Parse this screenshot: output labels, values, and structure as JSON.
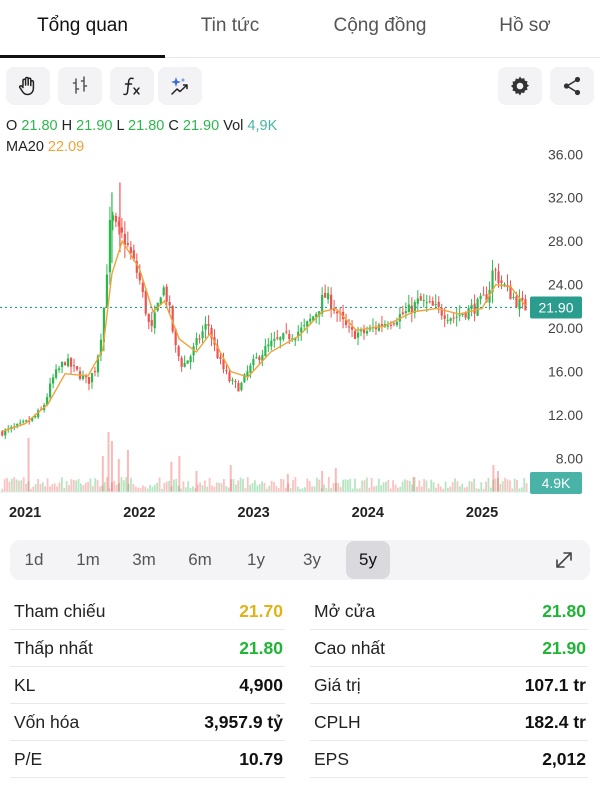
{
  "tabs": [
    {
      "label": "Tổng quan",
      "active": true
    },
    {
      "label": "Tin tức",
      "active": false
    },
    {
      "label": "Cộng đồng",
      "active": false
    },
    {
      "label": "Hồ sơ",
      "active": false
    }
  ],
  "toolbar": {
    "left_icons": [
      "hand-icon",
      "candle-type-icon",
      "function-icon",
      "ai-sparkle-icon"
    ],
    "right_icons": [
      "gear-icon",
      "share-icon"
    ]
  },
  "ohlc": {
    "o_label": "O",
    "o_value": "21.80",
    "h_label": "H",
    "h_value": "21.90",
    "l_label": "L",
    "l_value": "21.80",
    "c_label": "C",
    "c_value": "21.90",
    "vol_label": "Vol",
    "vol_value": "4,9K",
    "ma_label": "MA20",
    "ma_value": "22.09"
  },
  "colors": {
    "up": "#2db84d",
    "down": "#ef5350",
    "ma": "#f0a33a",
    "price_line": "#2a9d8f",
    "vol_badge": "#49b3a8"
  },
  "chart_data": {
    "type": "candlestick",
    "x_ticks": [
      "2021",
      "2022",
      "2023",
      "2024",
      "2025"
    ],
    "y_ticks": [
      "36.00",
      "32.00",
      "28.00",
      "24.00",
      "20.00",
      "16.00",
      "12.00",
      "8.00"
    ],
    "ylim": [
      6.2,
      37.5
    ],
    "last_price": "21.90",
    "last_volume": "4.9K",
    "close_series": [
      {
        "t": 2020.8,
        "v": 10.4
      },
      {
        "t": 2020.95,
        "v": 11.0
      },
      {
        "t": 2021.05,
        "v": 11.5
      },
      {
        "t": 2021.15,
        "v": 12.5
      },
      {
        "t": 2021.25,
        "v": 15.5
      },
      {
        "t": 2021.35,
        "v": 17.0
      },
      {
        "t": 2021.45,
        "v": 16.0
      },
      {
        "t": 2021.55,
        "v": 15.0
      },
      {
        "t": 2021.62,
        "v": 16.5
      },
      {
        "t": 2021.68,
        "v": 20.5
      },
      {
        "t": 2021.72,
        "v": 26.0
      },
      {
        "t": 2021.75,
        "v": 30.5
      },
      {
        "t": 2021.8,
        "v": 29.0
      },
      {
        "t": 2021.88,
        "v": 28.0
      },
      {
        "t": 2021.95,
        "v": 26.0
      },
      {
        "t": 2022.0,
        "v": 24.5
      },
      {
        "t": 2022.05,
        "v": 22.0
      },
      {
        "t": 2022.1,
        "v": 19.5
      },
      {
        "t": 2022.15,
        "v": 21.5
      },
      {
        "t": 2022.2,
        "v": 24.0
      },
      {
        "t": 2022.25,
        "v": 22.5
      },
      {
        "t": 2022.32,
        "v": 18.0
      },
      {
        "t": 2022.38,
        "v": 16.5
      },
      {
        "t": 2022.45,
        "v": 17.5
      },
      {
        "t": 2022.52,
        "v": 19.0
      },
      {
        "t": 2022.6,
        "v": 20.5
      },
      {
        "t": 2022.65,
        "v": 18.5
      },
      {
        "t": 2022.72,
        "v": 16.5
      },
      {
        "t": 2022.8,
        "v": 15.0
      },
      {
        "t": 2022.88,
        "v": 14.5
      },
      {
        "t": 2022.95,
        "v": 16.0
      },
      {
        "t": 2023.05,
        "v": 17.5
      },
      {
        "t": 2023.15,
        "v": 18.5
      },
      {
        "t": 2023.25,
        "v": 19.0
      },
      {
        "t": 2023.35,
        "v": 19.5
      },
      {
        "t": 2023.45,
        "v": 20.0
      },
      {
        "t": 2023.55,
        "v": 21.5
      },
      {
        "t": 2023.62,
        "v": 23.0
      },
      {
        "t": 2023.7,
        "v": 22.0
      },
      {
        "t": 2023.78,
        "v": 20.5
      },
      {
        "t": 2023.85,
        "v": 19.5
      },
      {
        "t": 2023.95,
        "v": 19.5
      },
      {
        "t": 2024.05,
        "v": 20.0
      },
      {
        "t": 2024.15,
        "v": 20.5
      },
      {
        "t": 2024.25,
        "v": 21.0
      },
      {
        "t": 2024.35,
        "v": 21.5
      },
      {
        "t": 2024.45,
        "v": 22.5
      },
      {
        "t": 2024.55,
        "v": 22.0
      },
      {
        "t": 2024.65,
        "v": 21.5
      },
      {
        "t": 2024.75,
        "v": 21.0
      },
      {
        "t": 2024.85,
        "v": 21.5
      },
      {
        "t": 2024.95,
        "v": 22.0
      },
      {
        "t": 2025.05,
        "v": 23.0
      },
      {
        "t": 2025.1,
        "v": 25.5
      },
      {
        "t": 2025.15,
        "v": 24.5
      },
      {
        "t": 2025.22,
        "v": 23.5
      },
      {
        "t": 2025.3,
        "v": 22.5
      },
      {
        "t": 2025.38,
        "v": 21.9
      }
    ],
    "ma_series": [
      {
        "t": 2020.8,
        "v": 10.5
      },
      {
        "t": 2021.0,
        "v": 11.2
      },
      {
        "t": 2021.2,
        "v": 13.0
      },
      {
        "t": 2021.35,
        "v": 15.8
      },
      {
        "t": 2021.55,
        "v": 15.6
      },
      {
        "t": 2021.68,
        "v": 18.0
      },
      {
        "t": 2021.76,
        "v": 25.0
      },
      {
        "t": 2021.85,
        "v": 28.0
      },
      {
        "t": 2022.0,
        "v": 25.5
      },
      {
        "t": 2022.12,
        "v": 21.5
      },
      {
        "t": 2022.22,
        "v": 22.5
      },
      {
        "t": 2022.35,
        "v": 19.0
      },
      {
        "t": 2022.5,
        "v": 17.8
      },
      {
        "t": 2022.62,
        "v": 19.5
      },
      {
        "t": 2022.8,
        "v": 16.0
      },
      {
        "t": 2022.95,
        "v": 15.5
      },
      {
        "t": 2023.15,
        "v": 17.8
      },
      {
        "t": 2023.4,
        "v": 19.3
      },
      {
        "t": 2023.6,
        "v": 21.5
      },
      {
        "t": 2023.72,
        "v": 21.8
      },
      {
        "t": 2023.9,
        "v": 19.8
      },
      {
        "t": 2024.15,
        "v": 20.2
      },
      {
        "t": 2024.4,
        "v": 21.5
      },
      {
        "t": 2024.6,
        "v": 21.8
      },
      {
        "t": 2024.8,
        "v": 21.3
      },
      {
        "t": 2025.0,
        "v": 21.8
      },
      {
        "t": 2025.12,
        "v": 24.0
      },
      {
        "t": 2025.25,
        "v": 23.8
      },
      {
        "t": 2025.38,
        "v": 22.09
      }
    ],
    "volume_spikes": [
      {
        "t": 2021.03,
        "v": 0.9
      },
      {
        "t": 2021.68,
        "v": 0.6
      },
      {
        "t": 2021.73,
        "v": 1.0
      },
      {
        "t": 2021.76,
        "v": 0.85
      },
      {
        "t": 2021.82,
        "v": 0.55
      },
      {
        "t": 2021.9,
        "v": 0.7
      },
      {
        "t": 2022.28,
        "v": 0.5
      },
      {
        "t": 2022.35,
        "v": 0.6
      },
      {
        "t": 2022.5,
        "v": 0.35
      },
      {
        "t": 2022.8,
        "v": 0.45
      },
      {
        "t": 2023.3,
        "v": 0.3
      },
      {
        "t": 2023.6,
        "v": 0.35
      },
      {
        "t": 2023.72,
        "v": 0.4
      },
      {
        "t": 2024.4,
        "v": 0.25
      },
      {
        "t": 2025.1,
        "v": 0.45
      },
      {
        "t": 2025.14,
        "v": 0.35
      }
    ]
  },
  "periods": [
    {
      "label": "1d",
      "active": false
    },
    {
      "label": "1m",
      "active": false
    },
    {
      "label": "3m",
      "active": false
    },
    {
      "label": "6m",
      "active": false
    },
    {
      "label": "1y",
      "active": false
    },
    {
      "label": "3y",
      "active": false
    },
    {
      "label": "5y",
      "active": true
    }
  ],
  "stats": {
    "left": [
      {
        "label": "Tham chiếu",
        "value": "21.70",
        "color": "yellow"
      },
      {
        "label": "Thấp nhất",
        "value": "21.80",
        "color": "green"
      },
      {
        "label": "KL",
        "value": "4,900",
        "color": "default"
      },
      {
        "label": "Vốn hóa",
        "value": "3,957.9 tỷ",
        "color": "default"
      },
      {
        "label": "P/E",
        "value": "10.79",
        "color": "default"
      }
    ],
    "right": [
      {
        "label": "Mở cửa",
        "value": "21.80",
        "color": "green"
      },
      {
        "label": "Cao nhất",
        "value": "21.90",
        "color": "green"
      },
      {
        "label": "Giá trị",
        "value": "107.1 tr",
        "color": "default"
      },
      {
        "label": "CPLH",
        "value": "182.4 tr",
        "color": "default"
      },
      {
        "label": "EPS",
        "value": "2,012",
        "color": "default"
      }
    ]
  }
}
